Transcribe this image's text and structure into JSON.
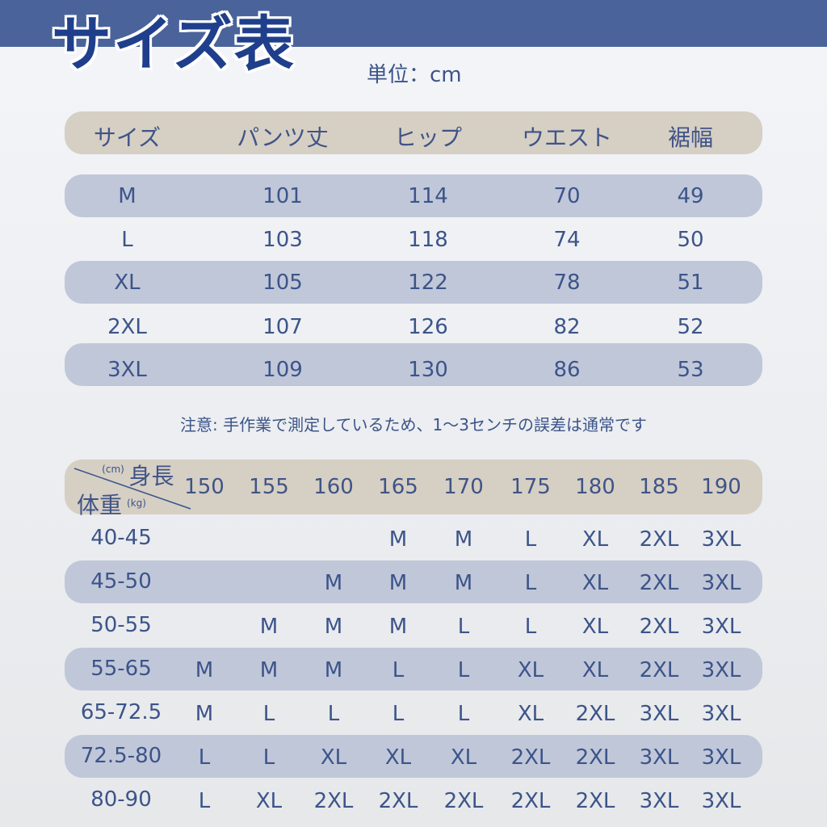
{
  "title": "サイズ表",
  "unit": "単位：cm",
  "size_table": {
    "headers": [
      "サイズ",
      "パンツ丈",
      "ヒップ",
      "ウエスト",
      "裾幅"
    ],
    "rows": [
      [
        "M",
        "101",
        "114",
        "70",
        "49"
      ],
      [
        "L",
        "103",
        "118",
        "74",
        "50"
      ],
      [
        "XL",
        "105",
        "122",
        "78",
        "51"
      ],
      [
        "2XL",
        "107",
        "126",
        "82",
        "52"
      ],
      [
        "3XL",
        "109",
        "130",
        "86",
        "53"
      ]
    ]
  },
  "note": "注意: 手作業で測定しているため、1〜3センチの誤差は通常です",
  "fit_table": {
    "height_label": "身長",
    "height_unit": "(cm)",
    "weight_label": "体重",
    "weight_unit": "(kg)",
    "heights": [
      "150",
      "155",
      "160",
      "165",
      "170",
      "175",
      "180",
      "185",
      "190"
    ],
    "rows": [
      {
        "weight": "40-45",
        "sizes": [
          "",
          "",
          "",
          "M",
          "M",
          "L",
          "XL",
          "2XL",
          "3XL"
        ]
      },
      {
        "weight": "45-50",
        "sizes": [
          "",
          "",
          "M",
          "M",
          "M",
          "L",
          "XL",
          "2XL",
          "3XL"
        ]
      },
      {
        "weight": "50-55",
        "sizes": [
          "",
          "M",
          "M",
          "M",
          "L",
          "L",
          "XL",
          "2XL",
          "3XL"
        ]
      },
      {
        "weight": "55-65",
        "sizes": [
          "M",
          "M",
          "M",
          "L",
          "L",
          "XL",
          "XL",
          "2XL",
          "3XL"
        ]
      },
      {
        "weight": "65-72.5",
        "sizes": [
          "M",
          "L",
          "L",
          "L",
          "L",
          "XL",
          "2XL",
          "3XL",
          "3XL"
        ]
      },
      {
        "weight": "72.5-80",
        "sizes": [
          "L",
          "L",
          "XL",
          "XL",
          "XL",
          "2XL",
          "2XL",
          "3XL",
          "3XL"
        ]
      },
      {
        "weight": "80-90",
        "sizes": [
          "L",
          "XL",
          "2XL",
          "2XL",
          "2XL",
          "2XL",
          "2XL",
          "3XL",
          "3XL"
        ]
      }
    ]
  }
}
